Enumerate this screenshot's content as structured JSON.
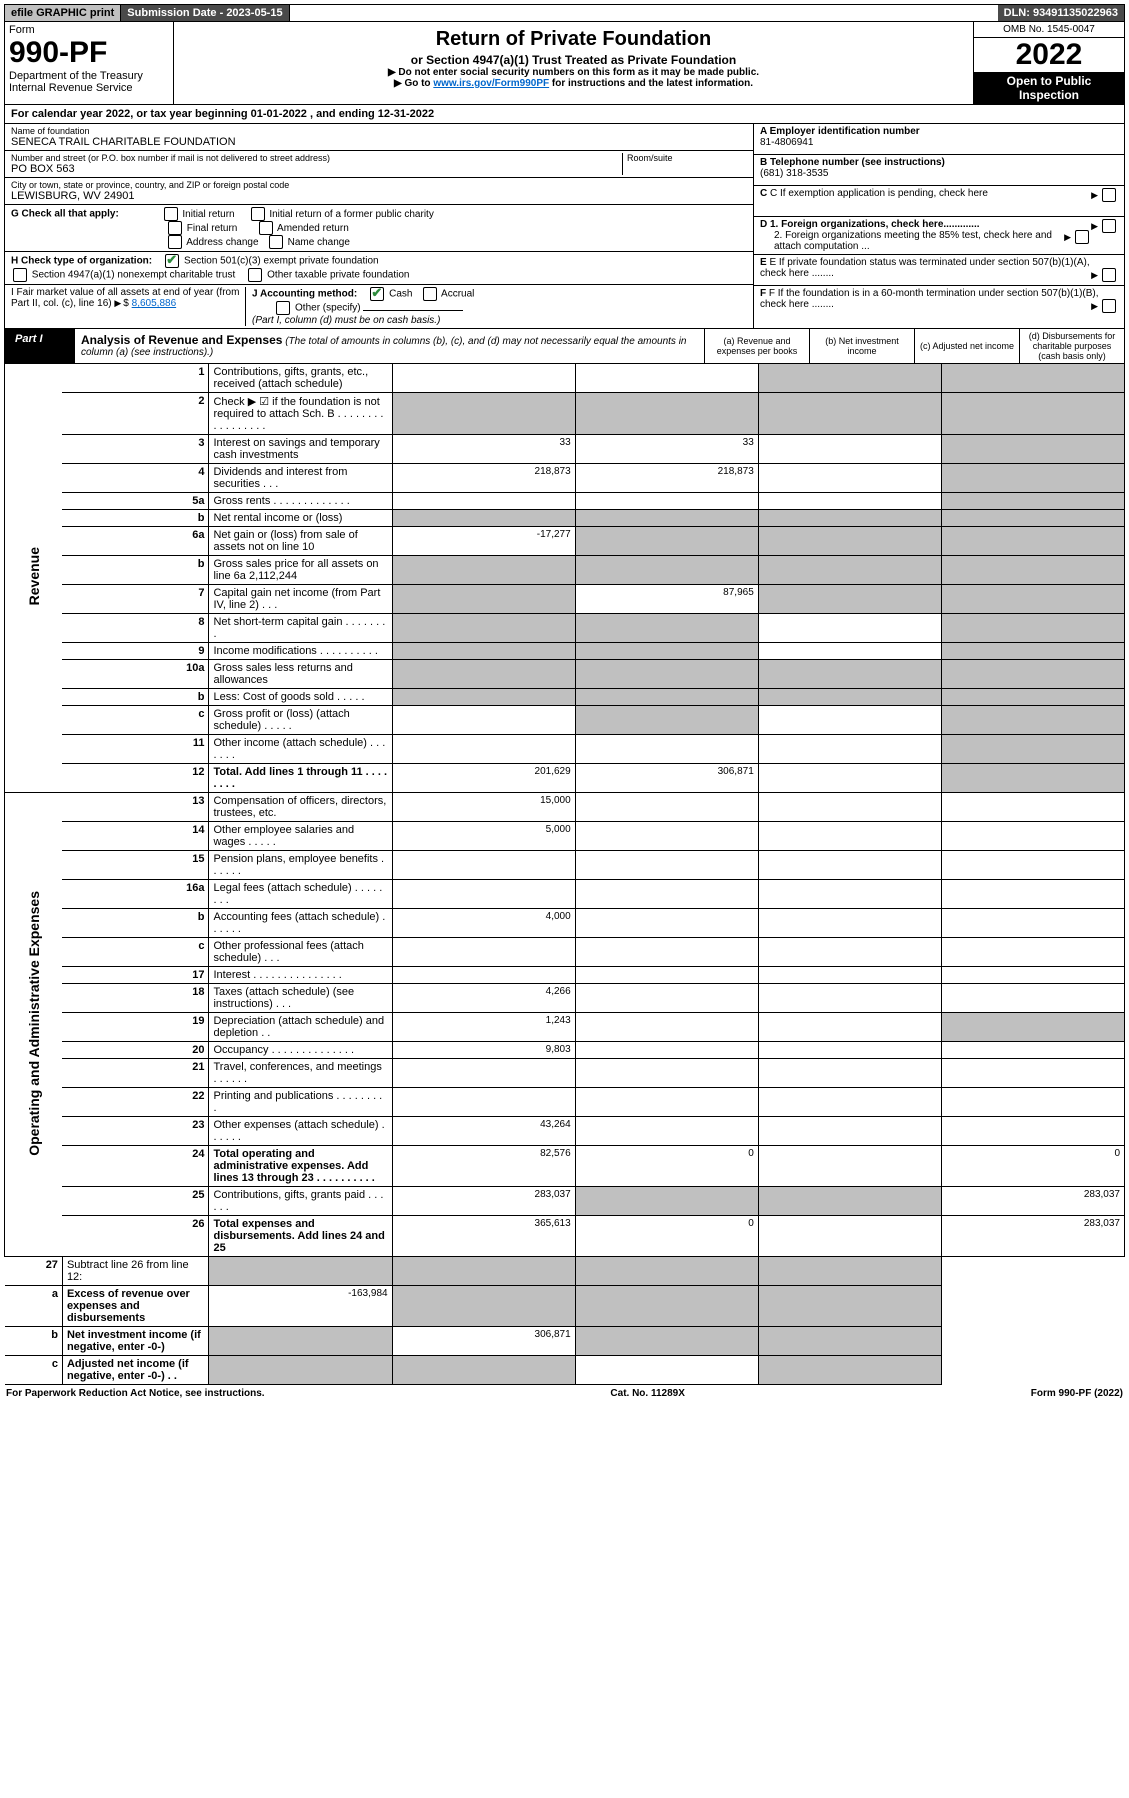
{
  "topbar": {
    "efile": "efile GRAPHIC print",
    "submission": "Submission Date - 2023-05-15",
    "dln": "DLN: 93491135022963"
  },
  "header": {
    "form_word": "Form",
    "form_no": "990-PF",
    "dept": "Department of the Treasury",
    "irs": "Internal Revenue Service",
    "title": "Return of Private Foundation",
    "subtitle": "or Section 4947(a)(1) Trust Treated as Private Foundation",
    "note1": "▶ Do not enter social security numbers on this form as it may be made public.",
    "note2_pre": "▶ Go to ",
    "note2_link": "www.irs.gov/Form990PF",
    "note2_post": " for instructions and the latest information.",
    "omb": "OMB No. 1545-0047",
    "year": "2022",
    "inspection": "Open to Public Inspection"
  },
  "calyear": "For calendar year 2022, or tax year beginning 01-01-2022          , and ending 12-31-2022",
  "entity": {
    "name_lbl": "Name of foundation",
    "name": "SENECA TRAIL CHARITABLE FOUNDATION",
    "addr_lbl": "Number and street (or P.O. box number if mail is not delivered to street address)",
    "addr": "PO BOX 563",
    "room_lbl": "Room/suite",
    "city_lbl": "City or town, state or province, country, and ZIP or foreign postal code",
    "city": "LEWISBURG, WV  24901",
    "ein_lbl": "A Employer identification number",
    "ein": "81-4806941",
    "phone_lbl": "B Telephone number (see instructions)",
    "phone": "(681) 318-3535",
    "c_lbl": "C If exemption application is pending, check here",
    "d1": "D 1. Foreign organizations, check here.............",
    "d2": "2. Foreign organizations meeting the 85% test, check here and attach computation ...",
    "e_lbl": "E  If private foundation status was terminated under section 507(b)(1)(A), check here ........",
    "f_lbl": "F  If the foundation is in a 60-month termination under section 507(b)(1)(B), check here ........"
  },
  "boxG": {
    "label": "G Check all that apply:",
    "initial": "Initial return",
    "initial_former": "Initial return of a former public charity",
    "final": "Final return",
    "amended": "Amended return",
    "addr_change": "Address change",
    "name_change": "Name change"
  },
  "boxH": {
    "label": "H Check type of organization:",
    "opt1": "Section 501(c)(3) exempt private foundation",
    "opt2": "Section 4947(a)(1) nonexempt charitable trust",
    "opt3": "Other taxable private foundation"
  },
  "boxI": {
    "label": "I Fair market value of all assets at end of year (from Part II, col. (c), line 16)",
    "value": "8,605,886"
  },
  "boxJ": {
    "label": "J Accounting method:",
    "cash": "Cash",
    "accrual": "Accrual",
    "other": "Other (specify)",
    "note": "(Part I, column (d) must be on cash basis.)"
  },
  "part1": {
    "label": "Part I",
    "title": "Analysis of Revenue and Expenses",
    "note": "(The total of amounts in columns (b), (c), and (d) may not necessarily equal the amounts in column (a) (see instructions).)",
    "col_a": "(a)  Revenue and expenses per books",
    "col_b": "(b)  Net investment income",
    "col_c": "(c)  Adjusted net income",
    "col_d": "(d)  Disbursements for charitable purposes (cash basis only)"
  },
  "sections": {
    "revenue": "Revenue",
    "expenses": "Operating and Administrative Expenses"
  },
  "lines": [
    {
      "n": "1",
      "d": "Contributions, gifts, grants, etc., received (attach schedule)",
      "a": "",
      "b": "",
      "c": "",
      "dd": "",
      "shade_c": true,
      "shade_d": true
    },
    {
      "n": "2",
      "d": "Check ▶ ☑ if the foundation is not required to attach Sch. B  . . . . . . . . . . . . . . . . .",
      "a": "",
      "b": "",
      "c": "",
      "dd": "",
      "shade_a": true,
      "shade_b": true,
      "shade_c": true,
      "shade_d": true,
      "bold_not": true
    },
    {
      "n": "3",
      "d": "Interest on savings and temporary cash investments",
      "a": "33",
      "b": "33",
      "c": "",
      "dd": "",
      "shade_d": true
    },
    {
      "n": "4",
      "d": "Dividends and interest from securities  . . .",
      "a": "218,873",
      "b": "218,873",
      "c": "",
      "dd": "",
      "shade_d": true
    },
    {
      "n": "5a",
      "d": "Gross rents  . . . . . . . . . . . . .",
      "a": "",
      "b": "",
      "c": "",
      "dd": "",
      "shade_d": true
    },
    {
      "n": "b",
      "d": "Net rental income or (loss)  ",
      "a": "",
      "b": "",
      "c": "",
      "dd": "",
      "shade_a": true,
      "shade_b": true,
      "shade_c": true,
      "shade_d": true,
      "inline_box": true
    },
    {
      "n": "6a",
      "d": "Net gain or (loss) from sale of assets not on line 10",
      "a": "-17,277",
      "b": "",
      "c": "",
      "dd": "",
      "shade_b": true,
      "shade_c": true,
      "shade_d": true
    },
    {
      "n": "b",
      "d": "Gross sales price for all assets on line 6a            2,112,244",
      "a": "",
      "b": "",
      "c": "",
      "dd": "",
      "shade_a": true,
      "shade_b": true,
      "shade_c": true,
      "shade_d": true,
      "inline_box": true
    },
    {
      "n": "7",
      "d": "Capital gain net income (from Part IV, line 2)  . . .",
      "a": "",
      "b": "87,965",
      "c": "",
      "dd": "",
      "shade_a": true,
      "shade_c": true,
      "shade_d": true
    },
    {
      "n": "8",
      "d": "Net short-term capital gain  . . . . . . . .",
      "a": "",
      "b": "",
      "c": "",
      "dd": "",
      "shade_a": true,
      "shade_b": true,
      "shade_d": true
    },
    {
      "n": "9",
      "d": "Income modifications  . . . . . . . . . .",
      "a": "",
      "b": "",
      "c": "",
      "dd": "",
      "shade_a": true,
      "shade_b": true,
      "shade_d": true
    },
    {
      "n": "10a",
      "d": "Gross sales less returns and allowances",
      "a": "",
      "b": "",
      "c": "",
      "dd": "",
      "shade_a": true,
      "shade_b": true,
      "shade_c": true,
      "shade_d": true,
      "inline_box": true
    },
    {
      "n": "b",
      "d": "Less: Cost of goods sold  . . . . .",
      "a": "",
      "b": "",
      "c": "",
      "dd": "",
      "shade_a": true,
      "shade_b": true,
      "shade_c": true,
      "shade_d": true,
      "inline_box": true
    },
    {
      "n": "c",
      "d": "Gross profit or (loss) (attach schedule)  . . . . .",
      "a": "",
      "b": "",
      "c": "",
      "dd": "",
      "shade_b": true,
      "shade_d": true
    },
    {
      "n": "11",
      "d": "Other income (attach schedule)  . . . . . . .",
      "a": "",
      "b": "",
      "c": "",
      "dd": "",
      "shade_d": true
    },
    {
      "n": "12",
      "d": "Total. Add lines 1 through 11  . . . . . . . .",
      "a": "201,629",
      "b": "306,871",
      "c": "",
      "dd": "",
      "shade_d": true,
      "bold": true
    }
  ],
  "exp_lines": [
    {
      "n": "13",
      "d": "Compensation of officers, directors, trustees, etc.",
      "a": "15,000",
      "b": "",
      "c": "",
      "dd": ""
    },
    {
      "n": "14",
      "d": "Other employee salaries and wages  . . . . .",
      "a": "5,000",
      "b": "",
      "c": "",
      "dd": ""
    },
    {
      "n": "15",
      "d": "Pension plans, employee benefits  . . . . . .",
      "a": "",
      "b": "",
      "c": "",
      "dd": ""
    },
    {
      "n": "16a",
      "d": "Legal fees (attach schedule)  . . . . . . . .",
      "a": "",
      "b": "",
      "c": "",
      "dd": ""
    },
    {
      "n": "b",
      "d": "Accounting fees (attach schedule)  . . . . . .",
      "a": "4,000",
      "b": "",
      "c": "",
      "dd": ""
    },
    {
      "n": "c",
      "d": "Other professional fees (attach schedule)  . . .",
      "a": "",
      "b": "",
      "c": "",
      "dd": ""
    },
    {
      "n": "17",
      "d": "Interest  . . . . . . . . . . . . . . .",
      "a": "",
      "b": "",
      "c": "",
      "dd": ""
    },
    {
      "n": "18",
      "d": "Taxes (attach schedule) (see instructions)  . . .",
      "a": "4,266",
      "b": "",
      "c": "",
      "dd": ""
    },
    {
      "n": "19",
      "d": "Depreciation (attach schedule) and depletion  . .",
      "a": "1,243",
      "b": "",
      "c": "",
      "dd": "",
      "shade_d": true
    },
    {
      "n": "20",
      "d": "Occupancy  . . . . . . . . . . . . . .",
      "a": "9,803",
      "b": "",
      "c": "",
      "dd": ""
    },
    {
      "n": "21",
      "d": "Travel, conferences, and meetings  . . . . . .",
      "a": "",
      "b": "",
      "c": "",
      "dd": ""
    },
    {
      "n": "22",
      "d": "Printing and publications  . . . . . . . . .",
      "a": "",
      "b": "",
      "c": "",
      "dd": ""
    },
    {
      "n": "23",
      "d": "Other expenses (attach schedule)  . . . . . .",
      "a": "43,264",
      "b": "",
      "c": "",
      "dd": ""
    },
    {
      "n": "24",
      "d": "Total operating and administrative expenses. Add lines 13 through 23  . . . . . . . . . .",
      "a": "82,576",
      "b": "0",
      "c": "",
      "dd": "0",
      "bold": true
    },
    {
      "n": "25",
      "d": "Contributions, gifts, grants paid  . . . . . .",
      "a": "283,037",
      "b": "",
      "c": "",
      "dd": "283,037",
      "shade_b": true,
      "shade_c": true
    },
    {
      "n": "26",
      "d": "Total expenses and disbursements. Add lines 24 and 25",
      "a": "365,613",
      "b": "0",
      "c": "",
      "dd": "283,037",
      "bold": true
    }
  ],
  "net_lines": [
    {
      "n": "27",
      "d": "Subtract line 26 from line 12:",
      "a": "",
      "b": "",
      "c": "",
      "dd": "",
      "shade_a": true,
      "shade_b": true,
      "shade_c": true,
      "shade_d": true
    },
    {
      "n": "a",
      "d": "Excess of revenue over expenses and disbursements",
      "a": "-163,984",
      "b": "",
      "c": "",
      "dd": "",
      "bold": true,
      "shade_b": true,
      "shade_c": true,
      "shade_d": true
    },
    {
      "n": "b",
      "d": "Net investment income (if negative, enter -0-)",
      "a": "",
      "b": "306,871",
      "c": "",
      "dd": "",
      "bold": true,
      "shade_a": true,
      "shade_c": true,
      "shade_d": true
    },
    {
      "n": "c",
      "d": "Adjusted net income (if negative, enter -0-)  . .",
      "a": "",
      "b": "",
      "c": "",
      "dd": "",
      "bold": true,
      "shade_a": true,
      "shade_b": true,
      "shade_d": true
    }
  ],
  "footer": {
    "left": "For Paperwork Reduction Act Notice, see instructions.",
    "mid": "Cat. No. 11289X",
    "right": "Form 990-PF (2022)"
  }
}
